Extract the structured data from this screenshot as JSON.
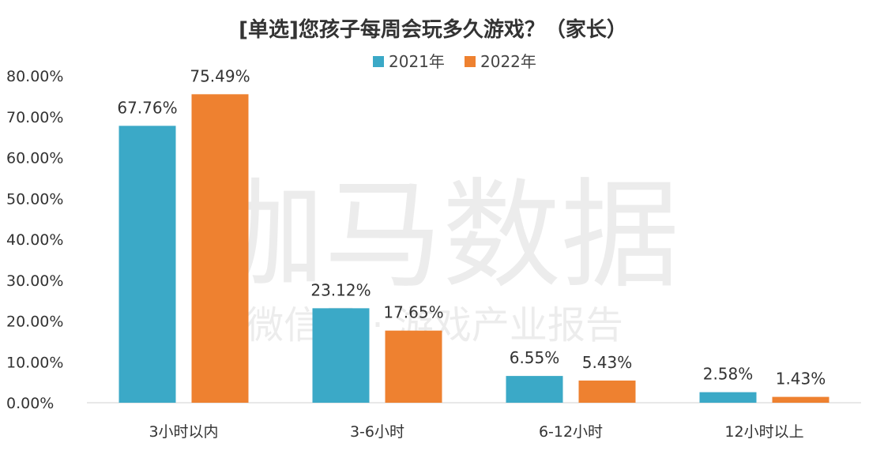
{
  "chart_data": {
    "type": "bar",
    "title": "[单选]您孩子每周会玩多久游戏？（家长）",
    "categories": [
      "3小时以内",
      "3-6小时",
      "6-12小时",
      "12小时以上"
    ],
    "series": [
      {
        "name": "2021年",
        "color": "#3ba9c7",
        "values": [
          67.76,
          23.12,
          6.55,
          2.58
        ],
        "labels": [
          "67.76%",
          "23.12%",
          "6.55%",
          "2.58%"
        ]
      },
      {
        "name": "2022年",
        "color": "#ee8130",
        "values": [
          75.49,
          17.65,
          5.43,
          1.43
        ],
        "labels": [
          "75.49%",
          "17.65%",
          "5.43%",
          "1.43%"
        ]
      }
    ],
    "ylim": [
      0,
      80
    ],
    "yticks": [
      0,
      10,
      20,
      30,
      40,
      50,
      60,
      70,
      80
    ],
    "ytick_labels": [
      "0.00%",
      "10.00%",
      "20.00%",
      "30.00%",
      "40.00%",
      "50.00%",
      "60.00%",
      "70.00%",
      "80.00%"
    ],
    "legend_position": "top-center",
    "grid": false
  },
  "watermark": {
    "main": "伽马数据",
    "sub": "微信号 · 游戏产业报告"
  }
}
